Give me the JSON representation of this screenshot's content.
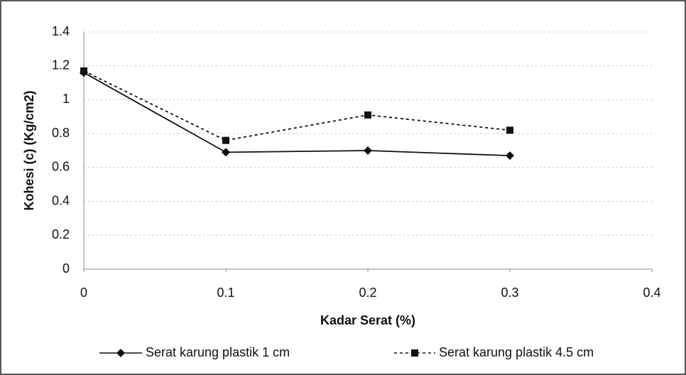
{
  "chart_data": {
    "type": "line",
    "x_label": "Kadar Serat (%)",
    "y_label": "Kohesi (c) (Kg/cm2)",
    "xlim": [
      0,
      0.4
    ],
    "xticks": [
      0,
      0.1,
      0.2,
      0.3,
      0.4
    ],
    "ylim": [
      0,
      1.4
    ],
    "yticks": [
      0,
      0.2,
      0.4,
      0.6,
      0.8,
      1,
      1.2,
      1.4
    ],
    "grid": true,
    "legend": "bottom",
    "x": [
      0,
      0.1,
      0.2,
      0.3
    ],
    "series": [
      {
        "name": "Serat karung plastik 1 cm",
        "color": "#111111",
        "line_style": "solid",
        "marker": "diamond",
        "values": [
          1.16,
          0.69,
          0.7,
          0.67
        ]
      },
      {
        "name": "Serat karung plastik 4.5 cm",
        "color": "#111111",
        "line_style": "dashed",
        "marker": "square",
        "values": [
          1.17,
          0.76,
          0.91,
          0.82
        ]
      }
    ]
  }
}
